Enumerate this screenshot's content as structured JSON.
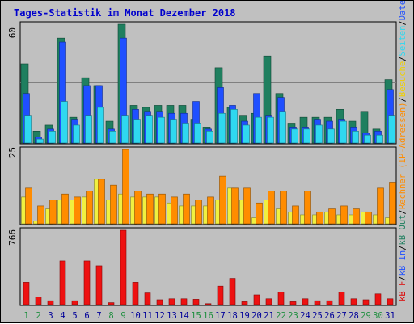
{
  "chart_data": {
    "type": "bar",
    "title": "Tages-Statistik im Monat Dezember 2018",
    "days": [
      1,
      2,
      3,
      4,
      5,
      6,
      7,
      8,
      9,
      10,
      11,
      12,
      13,
      14,
      15,
      16,
      17,
      18,
      19,
      20,
      21,
      22,
      23,
      24,
      25,
      26,
      27,
      28,
      29,
      30,
      31
    ],
    "weekend_days": [
      1,
      2,
      8,
      9,
      15,
      16,
      22,
      23,
      29,
      30
    ],
    "top_panel": {
      "ymax_label": "60",
      "ymax": 60,
      "series": [
        {
          "name": "Anfragen",
          "color": "#1f7f5f",
          "values": [
            40,
            6,
            9,
            53,
            13,
            33,
            29,
            11,
            60,
            19,
            18,
            19,
            19,
            19,
            12,
            8,
            38,
            18,
            14,
            15,
            44,
            25,
            10,
            13,
            13,
            13,
            17,
            11,
            16,
            7,
            32
          ]
        },
        {
          "name": "Dateien",
          "color": "#1f4fff",
          "values": [
            25,
            3,
            7,
            51,
            12,
            29,
            29,
            7,
            53,
            17,
            16,
            16,
            15,
            15,
            21,
            7,
            28,
            19,
            11,
            25,
            14,
            23,
            8,
            8,
            12,
            11,
            12,
            8,
            5,
            6,
            27
          ]
        },
        {
          "name": "Seiten",
          "color": "#2fd8f0",
          "values": [
            14,
            2,
            6,
            21,
            9,
            14,
            18,
            6,
            14,
            12,
            14,
            13,
            12,
            10,
            10,
            6,
            15,
            17,
            9,
            13,
            13,
            16,
            7,
            7,
            9,
            7,
            11,
            6,
            4,
            4,
            14
          ]
        }
      ]
    },
    "middle_panel": {
      "ymax_label": "25",
      "ymax": 25,
      "series": [
        {
          "name": "Besuche",
          "color": "#f0f040",
          "values": [
            9,
            1,
            5,
            8,
            8,
            9,
            15,
            8,
            10,
            9,
            9,
            9,
            7,
            6,
            6,
            6,
            8,
            12,
            8,
            2,
            8,
            5,
            4,
            3,
            3,
            4,
            3,
            3,
            4,
            3,
            2
          ]
        },
        {
          "name": "Rechner (IP-Adressen)",
          "color": "#ff8c00",
          "values": [
            12,
            6,
            8,
            10,
            9,
            11,
            15,
            13,
            25,
            11,
            10,
            10,
            9,
            10,
            8,
            9,
            16,
            12,
            12,
            7,
            11,
            11,
            6,
            11,
            4,
            5,
            6,
            5,
            4,
            12,
            14
          ]
        }
      ]
    },
    "bottom_panel": {
      "ymax_label": "766",
      "ymax": 766,
      "series": [
        {
          "name": "kB F",
          "color": "#ee1111",
          "values": [
            230,
            80,
            40,
            450,
            40,
            450,
            400,
            20,
            766,
            230,
            120,
            50,
            60,
            60,
            55,
            10,
            190,
            270,
            30,
            100,
            60,
            130,
            30,
            60,
            40,
            40,
            130,
            60,
            50,
            110,
            60
          ]
        }
      ]
    },
    "right_legend": [
      {
        "text": "kB F",
        "color": "#dd0000"
      },
      {
        "text": "kB In",
        "color": "#1f4fff"
      },
      {
        "text": "kB Out",
        "color": "#1f7f5f"
      },
      {
        "text": "Rechner (IP-Adressen)",
        "color": "#ff8c00"
      },
      {
        "text": "Besuche",
        "color": "#f0d000"
      },
      {
        "text": "Seiten",
        "color": "#2fd8f0"
      },
      {
        "text": "Dateien",
        "color": "#1f4fff"
      },
      {
        "text": "Anfragen",
        "color": "#1f7f5f"
      }
    ],
    "separators": [
      "/",
      "/",
      "/",
      "/",
      "/",
      "/"
    ],
    "colors": {
      "background": "#c0c0c0",
      "plot_border": "#000000",
      "title": "#0000cc",
      "day_weekday": "#000099",
      "day_weekend": "#1f8f3f"
    }
  }
}
